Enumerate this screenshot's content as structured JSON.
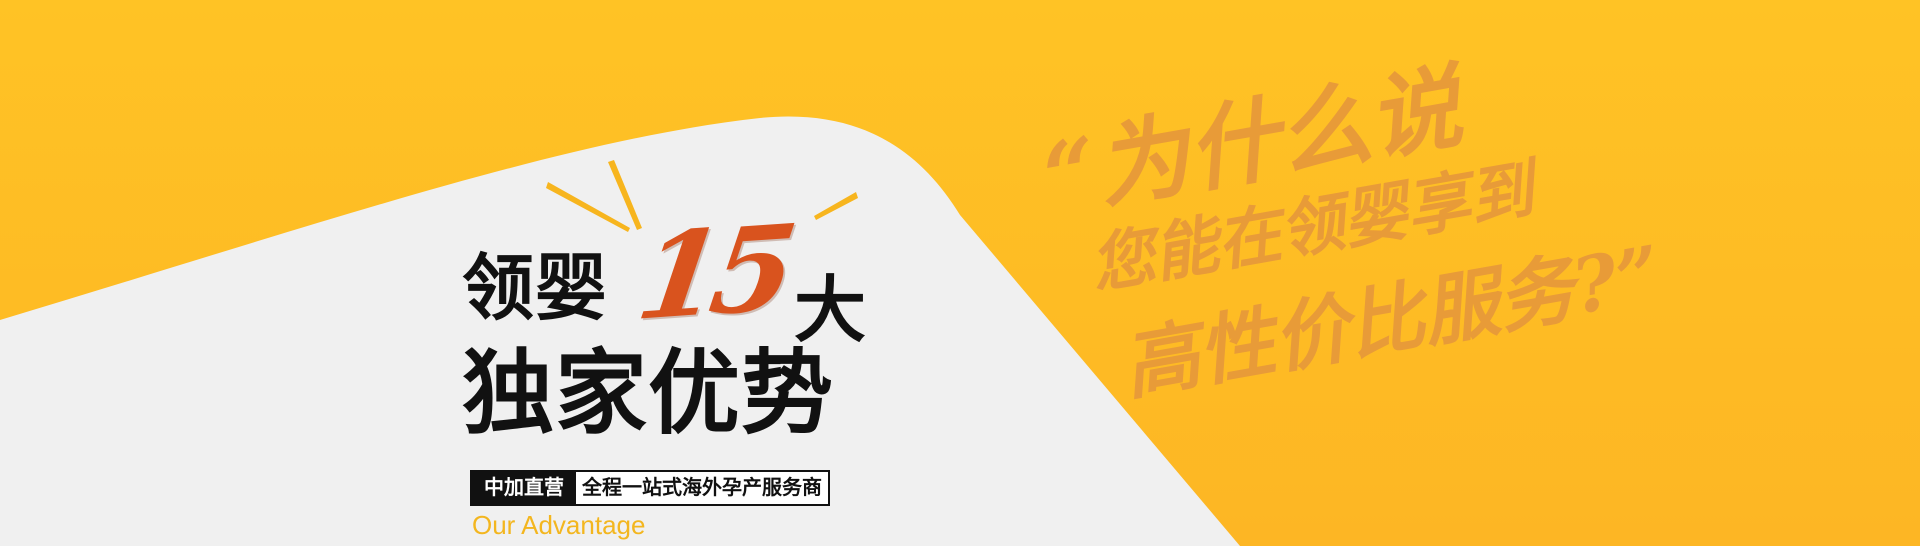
{
  "headline": {
    "line1_left": "领婴",
    "number": "15",
    "line1_right": "大",
    "line2": "独家优势"
  },
  "tagline": {
    "tag": "中加直营",
    "desc": "全程一站式海外孕产服务商"
  },
  "subtitle": "Our Advantage",
  "quote": {
    "line1": "“为什么说",
    "line2": "您能在领婴享到",
    "line3": "高性价比服务?”"
  },
  "colors": {
    "background_yellow": "#ffc125",
    "panel_gray": "#f0f0f0",
    "accent_orange": "#d9531e",
    "calligraphy": "#e79a3a",
    "subtitle_yellow": "#f3b61f",
    "text_black": "#111111"
  },
  "icons": {
    "burst": "spark-lines"
  }
}
